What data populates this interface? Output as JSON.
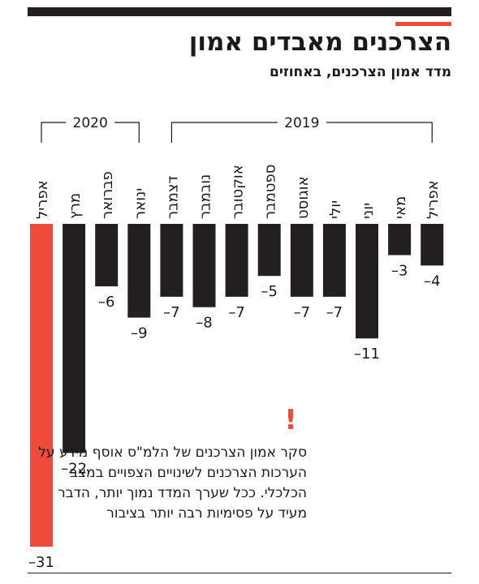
{
  "header": {
    "title": "הצרכנים מאבדים אמון",
    "subtitle": "מדד אמון הצרכנים, באחוזים"
  },
  "note": {
    "text": "סקר אמון הצרכנים של הלמ\"ס אוסף מידע על הערכות הצרכנים לשינויים הצפויים במצב הכלכלי. ככל שערך המדד נמוך יותר, הדבר מעיד על פסימיות רבה יותר בציבור"
  },
  "chart_data": {
    "type": "bar",
    "direction": "rtl",
    "groups": [
      {
        "label": "2019",
        "categories": [
          "אפריל",
          "מאי",
          "יוני",
          "יולי",
          "אוגוסט",
          "ספטמבר",
          "אוקטובר",
          "נובמבר",
          "דצמבר"
        ]
      },
      {
        "label": "2020",
        "categories": [
          "ינואר",
          "פברואר",
          "מרץ",
          "אפריל"
        ]
      }
    ],
    "categories": [
      "אפריל",
      "מאי",
      "יוני",
      "יולי",
      "אוגוסט",
      "ספטמבר",
      "אוקטובר",
      "נובמבר",
      "דצמבר",
      "ינואר",
      "פברואר",
      "מרץ",
      "אפריל"
    ],
    "values": [
      -4,
      -3,
      -11,
      -7,
      -7,
      -5,
      -7,
      -8,
      -7,
      -9,
      -6,
      -22,
      -31
    ],
    "value_labels": [
      "–4",
      "–3",
      "–11",
      "–7",
      "–7",
      "–5",
      "–7",
      "–8",
      "–7",
      "–9",
      "–6",
      "–22",
      "–31"
    ],
    "highlight_index": 12,
    "colors": {
      "bar": "#231f20",
      "highlight": "#ef4b3d"
    },
    "ylim": [
      -31,
      0
    ],
    "grid": false,
    "legend": "none"
  }
}
